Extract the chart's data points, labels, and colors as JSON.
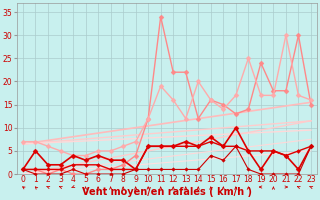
{
  "bg_color": "#c8f0ee",
  "grid_color": "#aacccc",
  "xlabel": "Vent moyen/en rafales ( km/h )",
  "ylabel_ticks": [
    0,
    5,
    10,
    15,
    20,
    25,
    30,
    35
  ],
  "xlim": [
    -0.5,
    23.5
  ],
  "ylim": [
    0,
    37
  ],
  "x": [
    0,
    1,
    2,
    3,
    4,
    5,
    6,
    7,
    8,
    9,
    10,
    11,
    12,
    13,
    14,
    15,
    16,
    17,
    18,
    19,
    20,
    21,
    22,
    23
  ],
  "series_dark": [
    {
      "y": [
        1,
        5,
        2,
        2,
        4,
        3,
        4,
        3,
        3,
        1,
        6,
        6,
        6,
        7,
        6,
        8,
        6,
        10,
        5,
        1,
        5,
        4,
        1,
        6
      ],
      "color": "#dd0000",
      "linewidth": 1.2,
      "marker": "D",
      "markersize": 2.5
    },
    {
      "y": [
        1,
        1,
        1,
        1,
        2,
        2,
        2,
        1,
        1,
        1,
        6,
        6,
        6,
        6,
        6,
        7,
        6,
        6,
        5,
        5,
        5,
        4,
        5,
        6
      ],
      "color": "#dd0000",
      "linewidth": 1.0,
      "marker": "D",
      "markersize": 2.0
    },
    {
      "y": [
        1,
        0,
        0,
        0,
        1,
        0,
        0,
        0,
        0,
        1,
        1,
        1,
        1,
        1,
        1,
        4,
        3,
        6,
        1,
        0,
        0,
        0,
        0,
        6
      ],
      "color": "#cc0000",
      "linewidth": 0.8,
      "marker": "D",
      "markersize": 1.8
    }
  ],
  "series_light": [
    {
      "y": [
        1,
        1,
        0,
        1,
        0,
        0,
        1,
        1,
        2,
        4,
        12,
        34,
        22,
        22,
        12,
        16,
        15,
        13,
        14,
        24,
        18,
        18,
        30,
        15
      ],
      "color": "#ff8888",
      "linewidth": 1.0,
      "marker": "D",
      "markersize": 2.5
    },
    {
      "y": [
        7,
        7,
        6,
        5,
        4,
        4,
        5,
        5,
        6,
        7,
        12,
        19,
        16,
        12,
        20,
        16,
        14,
        17,
        25,
        17,
        17,
        30,
        17,
        16
      ],
      "color": "#ffaaaa",
      "linewidth": 1.0,
      "marker": "D",
      "markersize": 2.5
    }
  ],
  "trend_lines": [
    {
      "y_start": 6.5,
      "y_end": 15.5,
      "color": "#ffbbbb",
      "linewidth": 1.2
    },
    {
      "y_start": 6.5,
      "y_end": 11.5,
      "color": "#ffcccc",
      "linewidth": 1.0
    },
    {
      "y_start": 6.5,
      "y_end": 9.5,
      "color": "#ffd8d8",
      "linewidth": 1.0
    },
    {
      "y_start": 0,
      "y_end": 11.5,
      "color": "#ffcccc",
      "linewidth": 1.0
    },
    {
      "y_start": 0,
      "y_end": 7.5,
      "color": "#ffd8d8",
      "linewidth": 0.8
    },
    {
      "y_start": 0,
      "y_end": 5.0,
      "color": "#ffe0e0",
      "linewidth": 0.8
    }
  ],
  "wind_dir_angles": [
    210,
    200,
    225,
    225,
    315,
    180,
    180,
    180,
    180,
    180,
    180,
    180,
    180,
    180,
    180,
    180,
    180,
    180,
    180,
    270,
    180,
    90,
    225,
    225
  ],
  "font_color": "#cc0000",
  "tick_fontsize": 5.5,
  "label_fontsize": 7
}
